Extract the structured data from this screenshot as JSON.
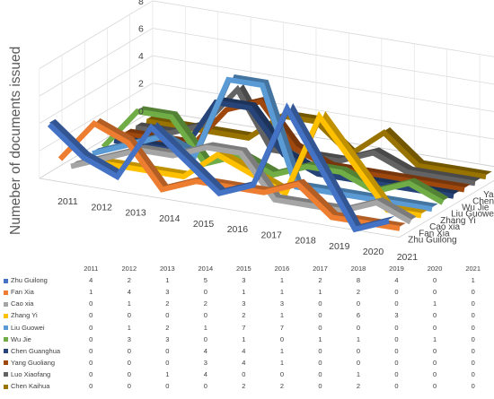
{
  "chart_data": {
    "type": "line",
    "style": "3d-line",
    "title": "",
    "ylabel": "Numeber of documents issued",
    "xlabel": "",
    "categories": [
      "2011",
      "2012",
      "2013",
      "2014",
      "2015",
      "2016",
      "2017",
      "2018",
      "2019",
      "2020",
      "2021"
    ],
    "yticks": [
      "0",
      "2",
      "4",
      "6",
      "8"
    ],
    "ylim": [
      0,
      8
    ],
    "grid": true,
    "legend": "data-table-below",
    "series": [
      {
        "name": "Zhu Guilong",
        "color": "#4472c4",
        "values": [
          4,
          2,
          1,
          5,
          3,
          1,
          2,
          8,
          4,
          0,
          1
        ]
      },
      {
        "name": "Fan Xia",
        "color": "#ed7d31",
        "values": [
          1,
          4,
          3,
          0,
          1,
          1,
          1,
          2,
          0,
          0,
          0
        ]
      },
      {
        "name": "Cao xia",
        "color": "#a5a5a5",
        "values": [
          0,
          1,
          2,
          2,
          3,
          3,
          0,
          0,
          0,
          1,
          0
        ]
      },
      {
        "name": "Zhang Yi",
        "color": "#ffc000",
        "values": [
          0,
          0,
          0,
          0,
          2,
          1,
          0,
          6,
          3,
          0,
          0
        ]
      },
      {
        "name": "Liu Guowei",
        "color": "#5b9bd5",
        "values": [
          0,
          1,
          2,
          1,
          7,
          7,
          0,
          0,
          0,
          0,
          0
        ]
      },
      {
        "name": "Wu Jie",
        "color": "#70ad47",
        "values": [
          0,
          3,
          3,
          0,
          1,
          0,
          1,
          1,
          0,
          1,
          0
        ]
      },
      {
        "name": "Chen Guanghua",
        "color": "#264478",
        "values": [
          0,
          0,
          0,
          4,
          4,
          1,
          0,
          0,
          0,
          0,
          0
        ]
      },
      {
        "name": "Yang Guoliang",
        "color": "#9e480e",
        "values": [
          0,
          0,
          0,
          3,
          4,
          1,
          0,
          0,
          0,
          0,
          0
        ]
      },
      {
        "name": "Luo Xiaofang",
        "color": "#636363",
        "values": [
          0,
          0,
          1,
          4,
          0,
          0,
          0,
          1,
          0,
          0,
          0
        ]
      },
      {
        "name": "Chen Kaihua",
        "color": "#997300",
        "values": [
          0,
          0,
          0,
          0,
          2,
          2,
          0,
          2,
          0,
          0,
          0
        ]
      }
    ]
  }
}
